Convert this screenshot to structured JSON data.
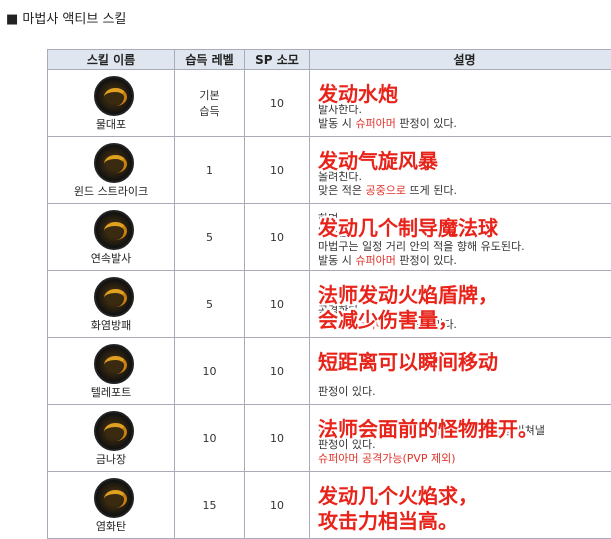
{
  "header": {
    "title": "■ 마법사 액티브 스킬"
  },
  "table": {
    "columns": [
      "스킬 이름",
      "습득 레벨",
      "SP 소모",
      "설명"
    ],
    "rows": [
      {
        "name": "물대포",
        "level": "기본\n습득",
        "sp": 10,
        "desc": [
          [
            {
              "text": "발사한다."
            }
          ],
          [
            {
              "text": "발동 시 "
            },
            {
              "text": "슈퍼아머",
              "hl": true
            },
            {
              "text": " 판정이 있다."
            }
          ]
        ],
        "overlay": [
          "发动水炮"
        ]
      },
      {
        "name": "윈드 스트라이크",
        "level": 1,
        "sp": 10,
        "desc": [
          [
            {
              "text": "올려친다."
            }
          ],
          [
            {
              "text": "맞은 적은 "
            },
            {
              "text": "공중으로",
              "hl": true
            },
            {
              "text": " 뜨게 된다."
            }
          ]
        ],
        "overlay": [
          "发动气旋风暴"
        ]
      },
      {
        "name": "연속발사",
        "level": 5,
        "sp": 10,
        "desc": [
          [
            {
              "text": "하며"
            }
          ],
          [
            {
              "text": "발사한다."
            }
          ],
          [
            {
              "text": "마법구는 일정 거리 안의 적을 향해 유도된다."
            }
          ],
          [
            {
              "text": "발동 시 "
            },
            {
              "text": "슈퍼아머",
              "hl": true
            },
            {
              "text": " 판정이 있다."
            }
          ]
        ],
        "overlay": [
          "发动几个制导魔法球"
        ]
      },
      {
        "name": "화염방패",
        "level": 5,
        "sp": 10,
        "desc": [
          [
            {
              "text": "공격한다."
            }
          ],
          [
            {
              "text": "발동 시 "
            },
            {
              "text": "슈퍼아머",
              "hl": true
            },
            {
              "text": " 판정이 있다."
            }
          ]
        ],
        "overlay": [
          "法师发动火焰盾牌，",
          "会减少伤害量，"
        ]
      },
      {
        "name": "텔레포트",
        "level": 10,
        "sp": 10,
        "desc": [
          [
            {
              "text": "판정이 있다."
            }
          ]
        ],
        "overlay": [
          "短距离可以瞬间移动"
        ]
      },
      {
        "name": "금나장",
        "level": 10,
        "sp": 10,
        "desc": [
          [
            {
              "text": "대상을 잡아 끌어서 강하게 밀쳐낸다. 적을 밀쳐낼"
            }
          ],
          [
            {
              "text": "판정이 있다."
            }
          ],
          [
            {
              "text": "슈퍼아머 공격가능(PVP 제외)",
              "hl": true
            }
          ]
        ],
        "overlay": [
          "法师会面前的怪物推开。"
        ]
      },
      {
        "name": "염화탄",
        "level": 15,
        "sp": 10,
        "desc": [],
        "overlay": [
          "发动几个火焰求，",
          "攻击力相当高。"
        ]
      }
    ]
  }
}
